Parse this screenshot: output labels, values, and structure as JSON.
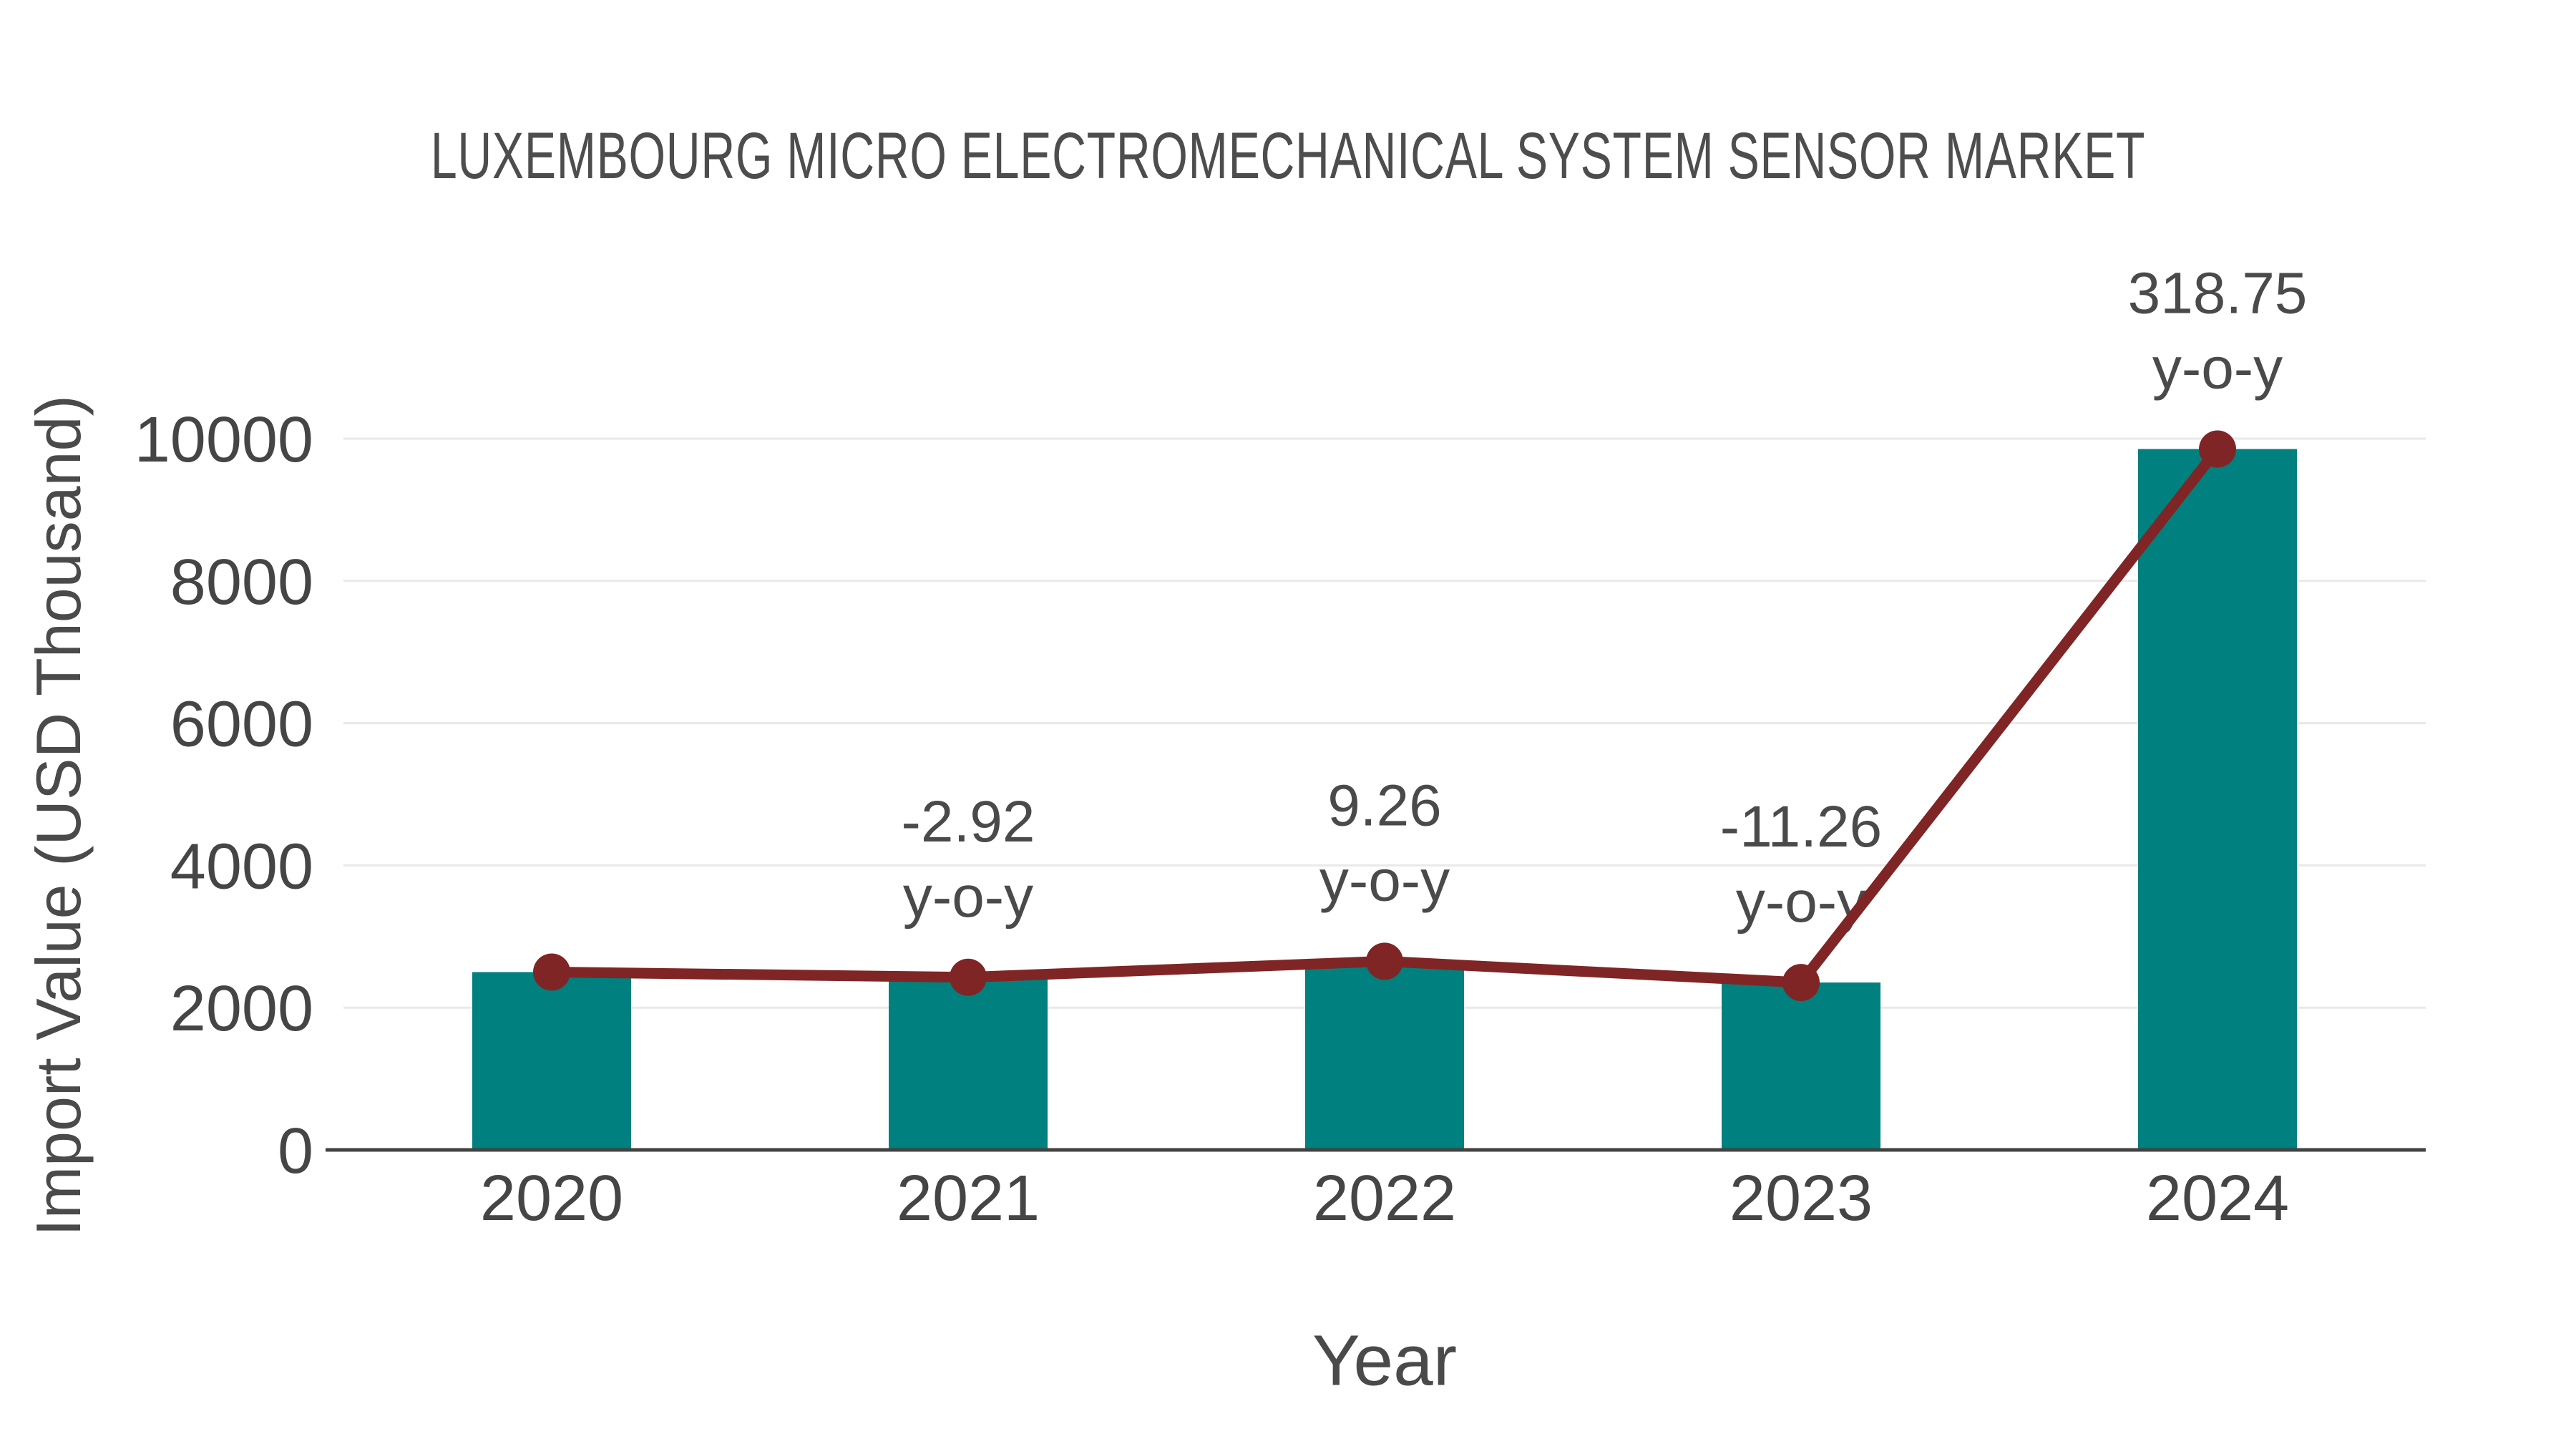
{
  "chart_data": {
    "type": "bar",
    "title": "LUXEMBOURG MICRO ELECTROMECHANICAL SYSTEM SENSOR MARKET",
    "xlabel": "Year",
    "ylabel": "Import Value (USD Thousand)",
    "categories": [
      "2020",
      "2021",
      "2022",
      "2023",
      "2024"
    ],
    "series": [
      {
        "name": "Import Value (bars)",
        "type": "bar",
        "color": "#00807e",
        "values": [
          2500,
          2427,
          2652,
          2353,
          9854
        ]
      },
      {
        "name": "Import Value (trend line)",
        "type": "line",
        "color": "#802525",
        "values": [
          2500,
          2427,
          2652,
          2353,
          9854
        ]
      }
    ],
    "annotations": [
      {
        "category": "2021",
        "lines": [
          "-2.92",
          "y-o-y"
        ]
      },
      {
        "category": "2022",
        "lines": [
          "9.26",
          "y-o-y"
        ]
      },
      {
        "category": "2023",
        "lines": [
          "-11.26",
          "y-o-y"
        ]
      },
      {
        "category": "2024",
        "lines": [
          "318.75",
          "y-o-y"
        ]
      }
    ],
    "yticks": [
      0,
      2000,
      4000,
      6000,
      8000,
      10000
    ],
    "ylim": [
      0,
      10500
    ],
    "grid": "horizontal",
    "legend": "none",
    "colors": {
      "bar": "#00807e",
      "line": "#802525",
      "marker": "#802525",
      "gridline": "#e9e9e9",
      "axis_line": "#424242",
      "tick_text": "#454545",
      "annotation_text": "#4a4a4a",
      "background": "#ffffff"
    }
  }
}
